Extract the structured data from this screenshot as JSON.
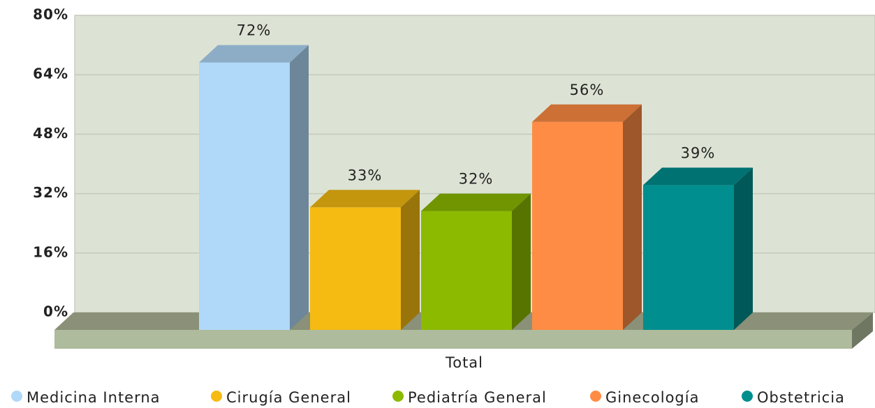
{
  "chart_data": {
    "type": "bar3d",
    "categories": [
      "Total"
    ],
    "series": [
      {
        "name": "Medicina Interna",
        "color": "#b0d8f8",
        "values": [
          72
        ],
        "value_labels": [
          "72%"
        ]
      },
      {
        "name": "Cirugía General",
        "color": "#f5bb12",
        "values": [
          33
        ],
        "value_labels": [
          "33%"
        ]
      },
      {
        "name": "Pediatría General",
        "color": "#8cba00",
        "values": [
          32
        ],
        "value_labels": [
          "32%"
        ]
      },
      {
        "name": "Ginecología",
        "color": "#ff8c44",
        "values": [
          56
        ],
        "value_labels": [
          "56%"
        ]
      },
      {
        "name": "Obstetricia",
        "color": "#008e8e",
        "values": [
          39
        ],
        "value_labels": [
          "39%"
        ]
      }
    ],
    "ylim": [
      0,
      80
    ],
    "yticks": [
      {
        "value": 0,
        "label": "0%"
      },
      {
        "value": 16,
        "label": "16%"
      },
      {
        "value": 32,
        "label": "32%"
      },
      {
        "value": 48,
        "label": "48%"
      },
      {
        "value": 64,
        "label": "64%"
      },
      {
        "value": 80,
        "label": "80%"
      }
    ],
    "grid": true
  }
}
